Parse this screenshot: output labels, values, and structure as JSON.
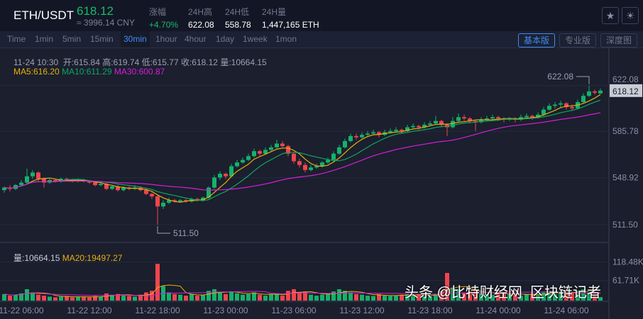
{
  "header": {
    "pair": "ETH/USDT",
    "last": "618.12",
    "cny": "≈ 3996.14 CNY",
    "stats": [
      {
        "label": "涨幅",
        "value": "+4.70%",
        "color": "#18b96f"
      },
      {
        "label": "24H高",
        "value": "622.08"
      },
      {
        "label": "24H低",
        "value": "558.78"
      },
      {
        "label": "24H量",
        "value": "1,447,165 ETH"
      }
    ],
    "icons": [
      "star-icon",
      "sun-icon"
    ]
  },
  "timeframes": {
    "items": [
      "Time",
      "1min",
      "5min",
      "15min",
      "30min",
      "1hour",
      "4hour",
      "1day",
      "1week",
      "1mon"
    ],
    "active": "30min"
  },
  "views": {
    "items": [
      "基本版",
      "专业版",
      "深度图"
    ],
    "active": "基本版"
  },
  "info": {
    "line": "11-24 10:30  开:615.84 高:619.74 低:615.77 收:618.12 量:10664.15",
    "ma5": "MA5:616.20",
    "ma10": "MA10:611.29",
    "ma30": "MA30:600.87",
    "vol": "量:10664.15",
    "vma20": "MA20:19497.27"
  },
  "watermark": "头条 @比特财经网  区块链记者",
  "chart_data": {
    "type": "candlestick",
    "interval": "30min",
    "colors": {
      "up": "#14b26b",
      "down": "#f0454d",
      "ma5": "#e6b00c",
      "ma10": "#10a565",
      "ma30": "#d61fd6"
    },
    "price_ticks": [
      "511.50",
      "548.92",
      "585.78",
      "622.08"
    ],
    "ylim": [
      505,
      632
    ],
    "volume_ticks": [
      "61.71K",
      "118.48K"
    ],
    "x_ticks": [
      {
        "label": "11-22 06:00",
        "index": 3
      },
      {
        "label": "11-22 12:00",
        "index": 15
      },
      {
        "label": "11-22 18:00",
        "index": 27
      },
      {
        "label": "11-23 00:00",
        "index": 39
      },
      {
        "label": "11-23 06:00",
        "index": 51
      },
      {
        "label": "11-23 12:00",
        "index": 63
      },
      {
        "label": "11-23 18:00",
        "index": 75
      },
      {
        "label": "11-24 00:00",
        "index": 87
      },
      {
        "label": "11-24 06:00",
        "index": 99
      }
    ],
    "annotations": {
      "high": "622.08",
      "low": "511.50",
      "current": "618.12"
    },
    "candles": [
      [
        539,
        542,
        537,
        541
      ],
      [
        541,
        543,
        538,
        540
      ],
      [
        540,
        544,
        539,
        543
      ],
      [
        543,
        547,
        542,
        545
      ],
      [
        545,
        556,
        544,
        550
      ],
      [
        550,
        555,
        548,
        553
      ],
      [
        553,
        554,
        546,
        548
      ],
      [
        548,
        549,
        541,
        545
      ],
      [
        545,
        548,
        544,
        547
      ],
      [
        547,
        548,
        545,
        546
      ],
      [
        546,
        549,
        545,
        548
      ],
      [
        548,
        549,
        546,
        547
      ],
      [
        547,
        548,
        545,
        546
      ],
      [
        546,
        548,
        545,
        547
      ],
      [
        547,
        548,
        545,
        546
      ],
      [
        546,
        547,
        544,
        545
      ],
      [
        545,
        546,
        542,
        543
      ],
      [
        543,
        545,
        542,
        544
      ],
      [
        544,
        545,
        539,
        540
      ],
      [
        540,
        543,
        539,
        542
      ],
      [
        542,
        543,
        538,
        539
      ],
      [
        539,
        542,
        538,
        541
      ],
      [
        541,
        542,
        539,
        540
      ],
      [
        540,
        543,
        539,
        541
      ],
      [
        541,
        542,
        538,
        539
      ],
      [
        539,
        540,
        535,
        536
      ],
      [
        536,
        537,
        532,
        534
      ],
      [
        534,
        535,
        511.5,
        526
      ],
      [
        526,
        531,
        524,
        529
      ],
      [
        529,
        533,
        528,
        531
      ],
      [
        531,
        532,
        529,
        530
      ],
      [
        530,
        532,
        529,
        531
      ],
      [
        531,
        532,
        529,
        530
      ],
      [
        530,
        533,
        529,
        532
      ],
      [
        532,
        533,
        530,
        531
      ],
      [
        531,
        534,
        530,
        533
      ],
      [
        533,
        542,
        532,
        541
      ],
      [
        541,
        551,
        540,
        549
      ],
      [
        549,
        554,
        547,
        552
      ],
      [
        552,
        553,
        548,
        550
      ],
      [
        550,
        560,
        549,
        558
      ],
      [
        558,
        563,
        557,
        561
      ],
      [
        561,
        565,
        560,
        563
      ],
      [
        563,
        568,
        562,
        566
      ],
      [
        566,
        572,
        565,
        570
      ],
      [
        570,
        571,
        566,
        568
      ],
      [
        568,
        573,
        567,
        571
      ],
      [
        571,
        575,
        570,
        573
      ],
      [
        573,
        579,
        572,
        576
      ],
      [
        576,
        578,
        573,
        574
      ],
      [
        574,
        575,
        566,
        568
      ],
      [
        568,
        569,
        560,
        562
      ],
      [
        562,
        564,
        557,
        559
      ],
      [
        559,
        561,
        553,
        555
      ],
      [
        555,
        559,
        554,
        557
      ],
      [
        557,
        560,
        556,
        558
      ],
      [
        558,
        562,
        557,
        561
      ],
      [
        561,
        565,
        560,
        563
      ],
      [
        563,
        570,
        562,
        568
      ],
      [
        568,
        575,
        567,
        573
      ],
      [
        573,
        580,
        572,
        578
      ],
      [
        578,
        584,
        577,
        582
      ],
      [
        582,
        584,
        579,
        581
      ],
      [
        581,
        585,
        580,
        583
      ],
      [
        583,
        586,
        582,
        584
      ],
      [
        584,
        587,
        583,
        585
      ],
      [
        585,
        586,
        581,
        583
      ],
      [
        583,
        587,
        582,
        585
      ],
      [
        585,
        588,
        584,
        586
      ],
      [
        586,
        589,
        585,
        587
      ],
      [
        587,
        588,
        584,
        586
      ],
      [
        586,
        591,
        585,
        589
      ],
      [
        589,
        592,
        588,
        590
      ],
      [
        590,
        591,
        587,
        589
      ],
      [
        589,
        593,
        588,
        591
      ],
      [
        591,
        594,
        590,
        592
      ],
      [
        592,
        598,
        591,
        594
      ],
      [
        594,
        595,
        589,
        591
      ],
      [
        591,
        592,
        582,
        589
      ],
      [
        589,
        597,
        588,
        594
      ],
      [
        594,
        600,
        593,
        597
      ],
      [
        597,
        599,
        594,
        596
      ],
      [
        596,
        597,
        592,
        594
      ],
      [
        594,
        595,
        586,
        593
      ],
      [
        593,
        597,
        592,
        595
      ],
      [
        595,
        598,
        594,
        596
      ],
      [
        596,
        599,
        595,
        597
      ],
      [
        597,
        598,
        594,
        596
      ],
      [
        596,
        597,
        593,
        595
      ],
      [
        595,
        597,
        594,
        596
      ],
      [
        596,
        597,
        593,
        595
      ],
      [
        595,
        599,
        594,
        597
      ],
      [
        597,
        600,
        596,
        598
      ],
      [
        598,
        599,
        595,
        597
      ],
      [
        597,
        601,
        596,
        599
      ],
      [
        599,
        605,
        598,
        603
      ],
      [
        603,
        608,
        602,
        606
      ],
      [
        606,
        609,
        604,
        607
      ],
      [
        607,
        610,
        605,
        608
      ],
      [
        608,
        609,
        603,
        605
      ],
      [
        605,
        607,
        602,
        604
      ],
      [
        604,
        611,
        603,
        609
      ],
      [
        609,
        616,
        608,
        614
      ],
      [
        614,
        622.08,
        613,
        617.5
      ],
      [
        617.5,
        619,
        615,
        616.5
      ],
      [
        615.84,
        619.74,
        615.77,
        618.12
      ]
    ],
    "volume_k": [
      20,
      15,
      18,
      22,
      35,
      25,
      18,
      15,
      12,
      10,
      12,
      14,
      10,
      12,
      11,
      10,
      14,
      12,
      22,
      18,
      20,
      15,
      14,
      12,
      18,
      25,
      30,
      113,
      45,
      25,
      20,
      18,
      15,
      20,
      15,
      18,
      30,
      35,
      25,
      20,
      28,
      22,
      18,
      20,
      25,
      18,
      15,
      20,
      22,
      15,
      30,
      35,
      25,
      28,
      18,
      15,
      18,
      22,
      28,
      35,
      30,
      25,
      20,
      18,
      15,
      14,
      20,
      15,
      14,
      15,
      18,
      20,
      16,
      18,
      15,
      14,
      20,
      30,
      85,
      40,
      35,
      25,
      28,
      30,
      22,
      20,
      18,
      25,
      22,
      20,
      18,
      15,
      20,
      22,
      18,
      25,
      30,
      20,
      28,
      22,
      25,
      30,
      35,
      22,
      18,
      10.66
    ]
  }
}
